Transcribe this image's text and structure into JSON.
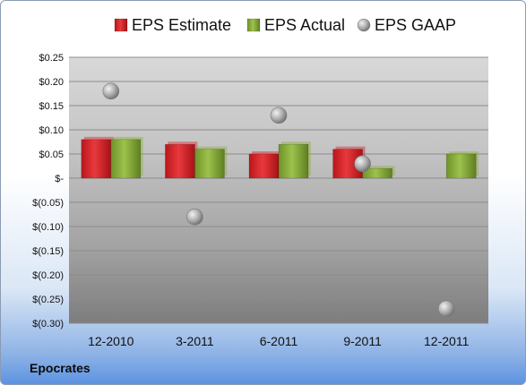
{
  "company": "Epocrates",
  "colors": {
    "estimate": "#d9252a",
    "actual": "#8bb13e",
    "gaap": "#a6a6a6"
  },
  "chart_data": {
    "type": "bar",
    "categories": [
      "12-2010",
      "3-2011",
      "6-2011",
      "9-2011",
      "12-2011"
    ],
    "series": [
      {
        "name": "EPS Estimate",
        "kind": "bar",
        "values": [
          0.08,
          0.07,
          0.05,
          0.06,
          null
        ]
      },
      {
        "name": "EPS Actual",
        "kind": "bar",
        "values": [
          0.08,
          0.06,
          0.07,
          0.02,
          0.05
        ]
      },
      {
        "name": "EPS GAAP",
        "kind": "scatter",
        "values": [
          0.18,
          -0.08,
          0.13,
          0.03,
          -0.27
        ]
      }
    ],
    "ylim": [
      -0.3,
      0.25
    ],
    "yticks": [
      0.25,
      0.2,
      0.15,
      0.1,
      0.05,
      0,
      -0.05,
      -0.1,
      -0.15,
      -0.2,
      -0.25,
      -0.3
    ],
    "ytick_labels": [
      "$0.25",
      "$0.20",
      "$0.15",
      "$0.10",
      "$0.05",
      "$-",
      "$(0.05)",
      "$(0.10)",
      "$(0.15)",
      "$(0.20)",
      "$(0.25)",
      "$(0.30)"
    ],
    "grid": true,
    "legend": "top"
  }
}
